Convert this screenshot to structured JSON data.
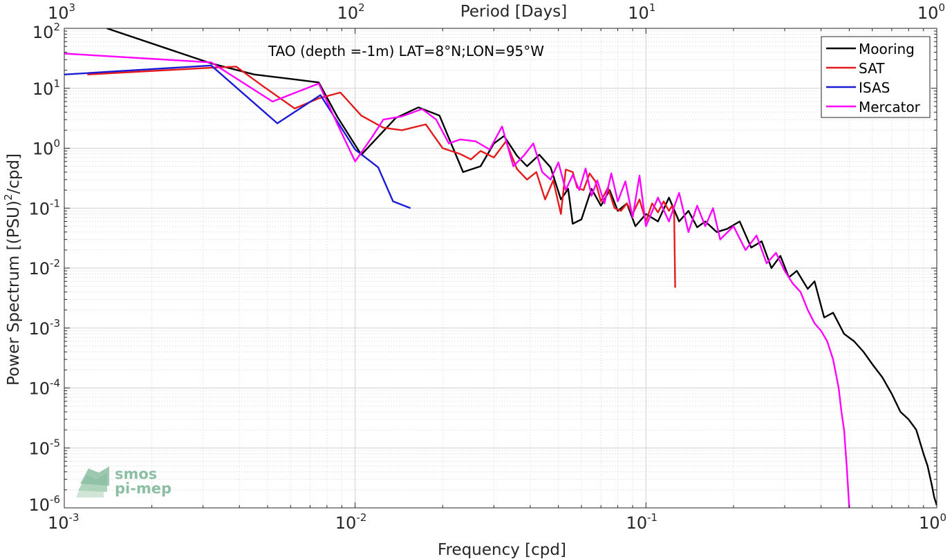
{
  "chart_data": {
    "type": "line",
    "title": "TAO (depth =-1m) LAT=8°N;LON=95°W",
    "xlabel": "Frequency [cpd]",
    "ylabel": "Power Spectrum [(PSU)²/cpd]",
    "ylabel_base": "Power Spectrum [(PSU)",
    "ylabel_sup": "2",
    "ylabel_end": "/cpd]",
    "top_xlabel": "Period [Days]",
    "xscale": "log",
    "yscale": "log",
    "xlim": [
      0.001,
      1
    ],
    "ylim": [
      1e-06,
      100
    ],
    "grid": true,
    "minor_grid": true,
    "legend_position": "top-right",
    "x_ticks": [
      {
        "value": 0.001,
        "base": "10",
        "exp": "-3"
      },
      {
        "value": 0.01,
        "base": "10",
        "exp": "-2"
      },
      {
        "value": 0.1,
        "base": "10",
        "exp": "-1"
      },
      {
        "value": 1,
        "base": "10",
        "exp": "0"
      }
    ],
    "top_ticks": [
      {
        "value": 0.001,
        "base": "10",
        "exp": "3"
      },
      {
        "value": 0.01,
        "base": "10",
        "exp": "2"
      },
      {
        "value": 0.1,
        "base": "10",
        "exp": "1"
      },
      {
        "value": 1,
        "base": "10",
        "exp": "0"
      }
    ],
    "y_ticks": [
      {
        "value": 100,
        "base": "10",
        "exp": "2"
      },
      {
        "value": 10,
        "base": "10",
        "exp": "1"
      },
      {
        "value": 1,
        "base": "10",
        "exp": "0"
      },
      {
        "value": 0.1,
        "base": "10",
        "exp": "-1"
      },
      {
        "value": 0.01,
        "base": "10",
        "exp": "-2"
      },
      {
        "value": 0.001,
        "base": "10",
        "exp": "-3"
      },
      {
        "value": 0.0001,
        "base": "10",
        "exp": "-4"
      },
      {
        "value": 1e-05,
        "base": "10",
        "exp": "-5"
      },
      {
        "value": 1e-06,
        "base": "10",
        "exp": "-6"
      }
    ],
    "series": [
      {
        "name": "Mooring",
        "color": "#000000",
        "points": [
          [
            0.0014,
            100
          ],
          [
            0.0032,
            26
          ],
          [
            0.0045,
            17
          ],
          [
            0.0059,
            14.5
          ],
          [
            0.0075,
            12.5
          ],
          [
            0.0087,
            3.3
          ],
          [
            0.0105,
            0.78
          ],
          [
            0.0138,
            3.2
          ],
          [
            0.0165,
            4.8
          ],
          [
            0.0195,
            3.5
          ],
          [
            0.0235,
            0.4
          ],
          [
            0.027,
            0.5
          ],
          [
            0.03,
            1.2
          ],
          [
            0.0325,
            1.6
          ],
          [
            0.036,
            0.75
          ],
          [
            0.039,
            0.5
          ],
          [
            0.043,
            0.78
          ],
          [
            0.047,
            0.48
          ],
          [
            0.051,
            0.14
          ],
          [
            0.054,
            0.21
          ],
          [
            0.056,
            0.055
          ],
          [
            0.06,
            0.065
          ],
          [
            0.065,
            0.21
          ],
          [
            0.07,
            0.11
          ],
          [
            0.075,
            0.2
          ],
          [
            0.08,
            0.09
          ],
          [
            0.086,
            0.12
          ],
          [
            0.092,
            0.05
          ],
          [
            0.1,
            0.08
          ],
          [
            0.11,
            0.06
          ],
          [
            0.12,
            0.15
          ],
          [
            0.13,
            0.06
          ],
          [
            0.14,
            0.09
          ],
          [
            0.15,
            0.048
          ],
          [
            0.16,
            0.06
          ],
          [
            0.175,
            0.04
          ],
          [
            0.19,
            0.045
          ],
          [
            0.21,
            0.06
          ],
          [
            0.23,
            0.022
          ],
          [
            0.25,
            0.028
          ],
          [
            0.27,
            0.01
          ],
          [
            0.29,
            0.016
          ],
          [
            0.31,
            0.007
          ],
          [
            0.33,
            0.009
          ],
          [
            0.36,
            0.0045
          ],
          [
            0.38,
            0.006
          ],
          [
            0.41,
            0.0015
          ],
          [
            0.44,
            0.0018
          ],
          [
            0.48,
            0.0008
          ],
          [
            0.52,
            0.0006
          ],
          [
            0.56,
            0.0004
          ],
          [
            0.6,
            0.00025
          ],
          [
            0.65,
            0.00015
          ],
          [
            0.7,
            8e-05
          ],
          [
            0.75,
            4e-05
          ],
          [
            0.8,
            3e-05
          ],
          [
            0.85,
            2e-05
          ],
          [
            0.9,
            8e-06
          ],
          [
            0.93,
            5e-06
          ],
          [
            0.96,
            2.5e-06
          ],
          [
            0.98,
            1.5e-06
          ],
          [
            1.0,
            1.1e-06
          ]
        ]
      },
      {
        "name": "SAT",
        "color": "#e41a1c",
        "points": [
          [
            0.0012,
            17
          ],
          [
            0.0032,
            22
          ],
          [
            0.0039,
            23
          ],
          [
            0.0048,
            11
          ],
          [
            0.0062,
            4.6
          ],
          [
            0.0075,
            6.8
          ],
          [
            0.0089,
            8.5
          ],
          [
            0.0105,
            3.5
          ],
          [
            0.0125,
            2.2
          ],
          [
            0.0145,
            2
          ],
          [
            0.0175,
            2.5
          ],
          [
            0.02,
            1
          ],
          [
            0.023,
            0.8
          ],
          [
            0.025,
            0.65
          ],
          [
            0.027,
            0.9
          ],
          [
            0.03,
            0.7
          ],
          [
            0.033,
            1.3
          ],
          [
            0.036,
            0.45
          ],
          [
            0.039,
            0.3
          ],
          [
            0.042,
            0.4
          ],
          [
            0.045,
            0.14
          ],
          [
            0.048,
            0.29
          ],
          [
            0.051,
            0.08
          ],
          [
            0.053,
            0.44
          ],
          [
            0.056,
            0.4
          ],
          [
            0.058,
            0.22
          ],
          [
            0.061,
            0.2
          ],
          [
            0.064,
            0.38
          ],
          [
            0.067,
            0.28
          ],
          [
            0.07,
            0.13
          ],
          [
            0.074,
            0.22
          ],
          [
            0.078,
            0.1
          ],
          [
            0.082,
            0.09
          ],
          [
            0.086,
            0.12
          ],
          [
            0.09,
            0.08
          ],
          [
            0.095,
            0.14
          ],
          [
            0.1,
            0.06
          ],
          [
            0.105,
            0.12
          ],
          [
            0.11,
            0.085
          ],
          [
            0.115,
            0.13
          ],
          [
            0.12,
            0.09
          ],
          [
            0.123,
            0.11
          ],
          [
            0.125,
            0.08
          ],
          [
            0.126,
            0.0047
          ]
        ]
      },
      {
        "name": "ISAS",
        "color": "#1a1ad6",
        "points": [
          [
            0.001,
            17
          ],
          [
            0.0032,
            24
          ],
          [
            0.0054,
            2.6
          ],
          [
            0.0076,
            7.7
          ],
          [
            0.01,
            0.95
          ],
          [
            0.012,
            0.48
          ],
          [
            0.0135,
            0.13
          ],
          [
            0.0155,
            0.1
          ]
        ]
      },
      {
        "name": "Mercator",
        "color": "#ff00ff",
        "points": [
          [
            0.001,
            38
          ],
          [
            0.0032,
            27
          ],
          [
            0.0052,
            6
          ],
          [
            0.0075,
            12
          ],
          [
            0.0087,
            2.5
          ],
          [
            0.01,
            0.6
          ],
          [
            0.0115,
            1.6
          ],
          [
            0.0125,
            3
          ],
          [
            0.0145,
            3.4
          ],
          [
            0.017,
            4.5
          ],
          [
            0.019,
            3
          ],
          [
            0.021,
            1.2
          ],
          [
            0.023,
            1.4
          ],
          [
            0.026,
            1.3
          ],
          [
            0.029,
            0.95
          ],
          [
            0.032,
            2.3
          ],
          [
            0.035,
            0.5
          ],
          [
            0.038,
            0.75
          ],
          [
            0.041,
            1.2
          ],
          [
            0.044,
            0.4
          ],
          [
            0.047,
            0.3
          ],
          [
            0.05,
            0.58
          ],
          [
            0.053,
            0.2
          ],
          [
            0.056,
            0.36
          ],
          [
            0.059,
            0.2
          ],
          [
            0.062,
            0.46
          ],
          [
            0.065,
            0.16
          ],
          [
            0.068,
            0.29
          ],
          [
            0.072,
            0.12
          ],
          [
            0.076,
            0.38
          ],
          [
            0.08,
            0.13
          ],
          [
            0.085,
            0.28
          ],
          [
            0.09,
            0.07
          ],
          [
            0.095,
            0.35
          ],
          [
            0.1,
            0.05
          ],
          [
            0.11,
            0.15
          ],
          [
            0.12,
            0.06
          ],
          [
            0.13,
            0.18
          ],
          [
            0.14,
            0.04
          ],
          [
            0.15,
            0.11
          ],
          [
            0.16,
            0.05
          ],
          [
            0.17,
            0.1
          ],
          [
            0.18,
            0.03
          ],
          [
            0.2,
            0.05
          ],
          [
            0.22,
            0.02
          ],
          [
            0.24,
            0.035
          ],
          [
            0.26,
            0.012
          ],
          [
            0.28,
            0.018
          ],
          [
            0.3,
            0.009
          ],
          [
            0.32,
            0.0055
          ],
          [
            0.34,
            0.004
          ],
          [
            0.36,
            0.002
          ],
          [
            0.38,
            0.0012
          ],
          [
            0.4,
            0.0009
          ],
          [
            0.42,
            0.0006
          ],
          [
            0.44,
            0.0003
          ],
          [
            0.46,
            0.0001
          ],
          [
            0.47,
            4e-05
          ],
          [
            0.48,
            2e-05
          ],
          [
            0.49,
            5e-06
          ],
          [
            0.5,
            1e-06
          ]
        ]
      }
    ]
  },
  "logo": {
    "line1": "smos",
    "line2": "pi-mep"
  }
}
